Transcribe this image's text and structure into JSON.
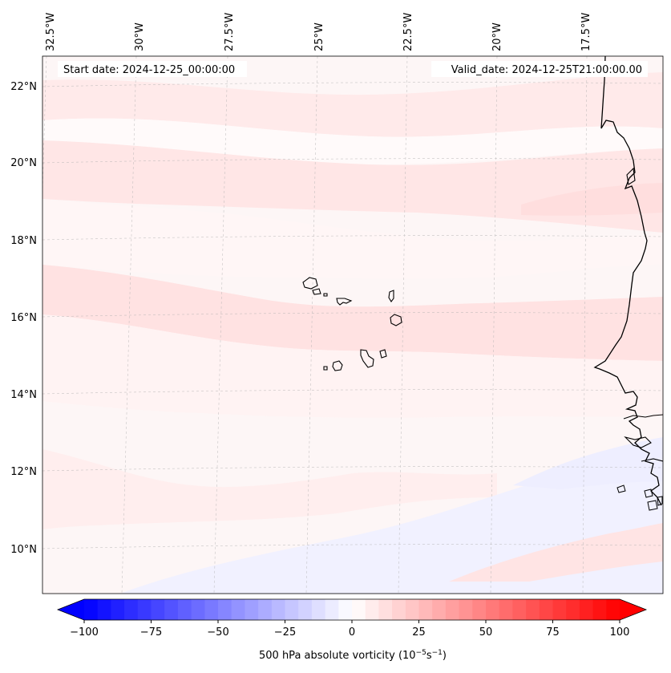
{
  "map": {
    "start_date_label": "Start date: 2024-12-25_00:00:00",
    "valid_date_label": "Valid_date: 2024-12-25T21:00:00.00",
    "lon_labels": [
      "32.5°W",
      "30°W",
      "27.5°W",
      "25°W",
      "22.5°W",
      "20°W",
      "17.5°W"
    ],
    "lat_labels": [
      "22°N",
      "20°N",
      "18°N",
      "16°N",
      "14°N",
      "12°N",
      "10°N"
    ],
    "field": "500 hPa absolute vorticity",
    "gridlines": "dashed",
    "colors": {
      "background": "#fdf6f6",
      "pink_band": "#ffe3e3",
      "pale_pink": "#fff0f0",
      "white_band": "#fffafa",
      "pale_blue": "#eeeeff",
      "coast": "#000000"
    }
  },
  "colorbar": {
    "colormap": "bwr",
    "min": -100,
    "max": 100,
    "levels": 40,
    "extend": "both",
    "tick_labels": [
      "−100",
      "−75",
      "−50",
      "−25",
      "0",
      "25",
      "50",
      "75",
      "100"
    ],
    "label_text": "500 hPa absolute vorticity (10",
    "label_exp1": "−5",
    "label_mid": "s",
    "label_exp2": "−1",
    "label_close": ")"
  }
}
